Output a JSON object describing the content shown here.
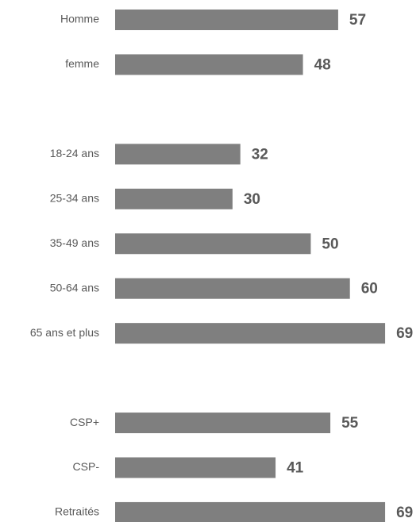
{
  "chart_data": {
    "type": "barh",
    "categories": [
      "Homme",
      "femme",
      null,
      "18-24 ans",
      "25-34 ans",
      "35-49 ans",
      "50-64 ans",
      "65 ans et plus",
      null,
      "CSP+",
      "CSP-",
      "Retraités"
    ],
    "values": [
      57,
      48,
      null,
      32,
      30,
      50,
      60,
      69,
      null,
      55,
      41,
      69
    ],
    "color": "#7f7f7f",
    "xlim": [
      0,
      70
    ]
  }
}
